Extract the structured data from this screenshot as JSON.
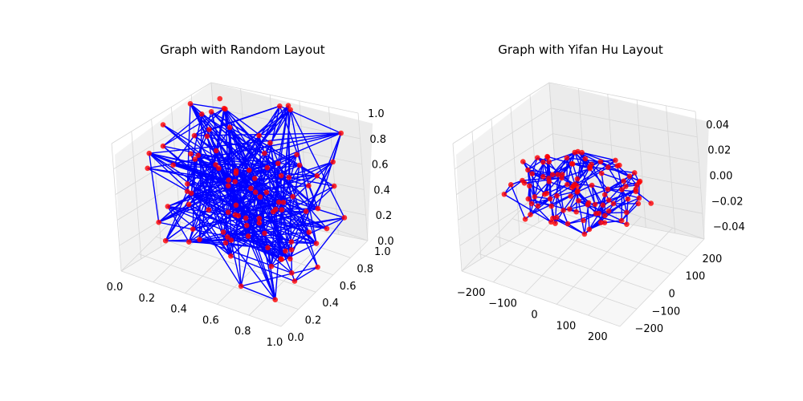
{
  "chart_data": [
    {
      "type": "scatter",
      "title": "Graph with Random Layout",
      "projection": "3d",
      "grid": true,
      "node_count": 100,
      "node_color": "#ff0000",
      "edge_color": "#0000ff",
      "xlim": [
        0,
        1
      ],
      "ylim": [
        0,
        1
      ],
      "zlim": [
        0,
        1
      ],
      "x_ticks": [
        "0.0",
        "0.2",
        "0.4",
        "0.6",
        "0.8",
        "1.0"
      ],
      "y_ticks": [
        "0.0",
        "0.2",
        "0.4",
        "0.6",
        "0.8",
        "1.0"
      ],
      "z_ticks": [
        "0.0",
        "0.2",
        "0.4",
        "0.6",
        "0.8",
        "1.0"
      ]
    },
    {
      "type": "scatter",
      "title": "Graph with Yifan Hu Layout",
      "projection": "3d",
      "grid": true,
      "node_count": 100,
      "node_color": "#ff0000",
      "edge_color": "#0000ff",
      "xlim": [
        -250,
        250
      ],
      "ylim": [
        -250,
        250
      ],
      "zlim": [
        -0.05,
        0.05
      ],
      "x_ticks": [
        "−200",
        "−100",
        "0",
        "100",
        "200"
      ],
      "y_ticks": [
        "−200",
        "−100",
        "0",
        "100",
        "200"
      ],
      "z_ticks": [
        "−0.04",
        "−0.02",
        "0.00",
        "0.02",
        "0.04"
      ]
    }
  ]
}
